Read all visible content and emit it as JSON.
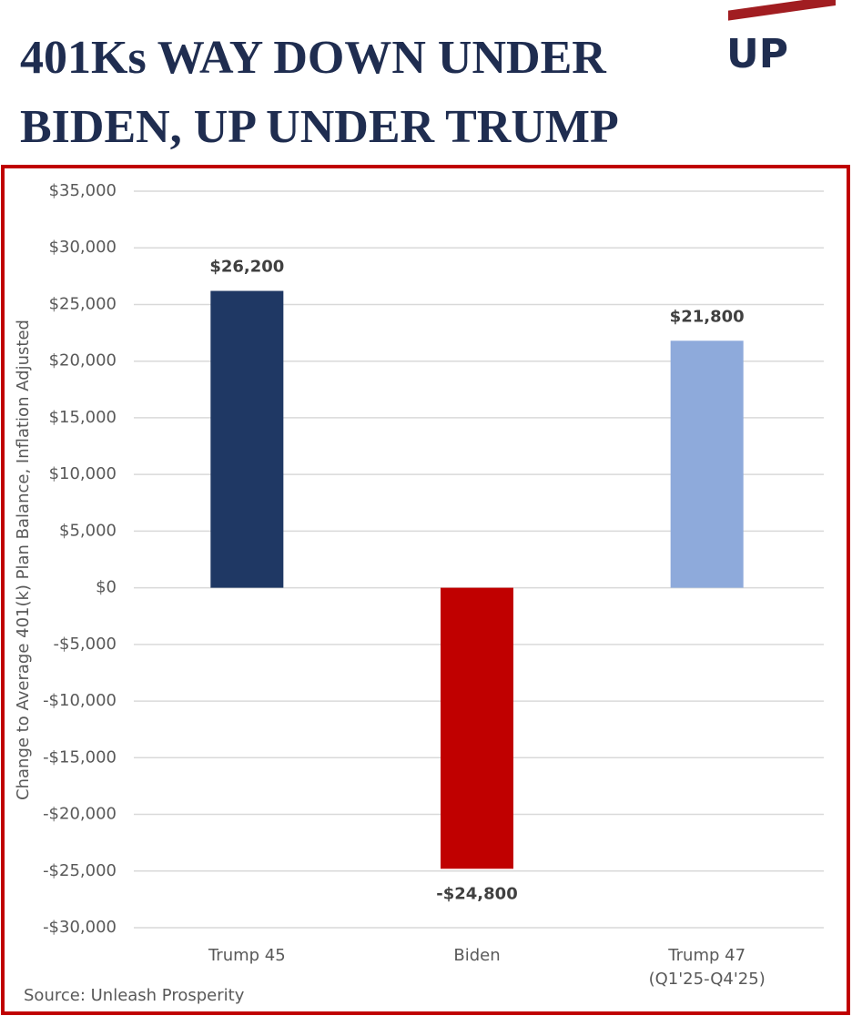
{
  "title": "401Ks WAY DOWN UNDER BIDEN, UP UNDER TRUMP",
  "logo": "UP",
  "chart_data": {
    "type": "bar",
    "y_label": "Change to Average 401(k) Plan Balance, Inflation Adjusted",
    "source": "Source: Unleash Prosperity",
    "categories": [
      "Trump 45",
      "Biden",
      "Trump 47\n(Q1'25-Q4'25)"
    ],
    "values": [
      26200,
      -24800,
      21800
    ],
    "value_labels": [
      "$26,200",
      "-$24,800",
      "$21,800"
    ],
    "colors": [
      "#1f3864",
      "#c00000",
      "#8eaadb"
    ],
    "ylim": [
      -30000,
      35000
    ],
    "yticks": [
      {
        "value": -30000,
        "label": "-$30,000"
      },
      {
        "value": -25000,
        "label": "-$25,000"
      },
      {
        "value": -20000,
        "label": "-$20,000"
      },
      {
        "value": -15000,
        "label": "-$15,000"
      },
      {
        "value": -10000,
        "label": "-$10,000"
      },
      {
        "value": -5000,
        "label": "-$5,000"
      },
      {
        "value": 0,
        "label": "$0"
      },
      {
        "value": 5000,
        "label": "$5,000"
      },
      {
        "value": 10000,
        "label": "$10,000"
      },
      {
        "value": 15000,
        "label": "$15,000"
      },
      {
        "value": 20000,
        "label": "$20,000"
      },
      {
        "value": 25000,
        "label": "$25,000"
      },
      {
        "value": 30000,
        "label": "$30,000"
      },
      {
        "value": 35000,
        "label": "$35,000"
      }
    ],
    "grid": true
  }
}
